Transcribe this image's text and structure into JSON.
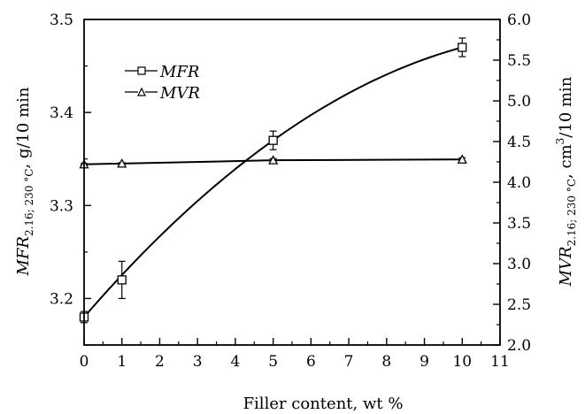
{
  "chart_data": {
    "type": "line",
    "xlabel": "Filler content, wt %",
    "ylabel_left": {
      "main": "MFR",
      "sub": "2.16; 230 °C",
      "unit": ", g/10 min"
    },
    "ylabel_right": {
      "main": "MVR",
      "sub": "2.16; 230 °C",
      "unit1": ", cm",
      "sup": "3",
      "unit2": "/10 min"
    },
    "xlim": [
      0,
      11
    ],
    "ylim_left": [
      3.15,
      3.5
    ],
    "ylim_right": [
      2.0,
      6.0
    ],
    "x_ticks": [
      "0",
      "1",
      "2",
      "3",
      "4",
      "5",
      "6",
      "7",
      "8",
      "9",
      "10",
      "11"
    ],
    "y_left_ticks": [
      "3.2",
      "3.3",
      "3.4",
      "3.5"
    ],
    "y_right_ticks": [
      "2.0",
      "2.5",
      "3.0",
      "3.5",
      "4.0",
      "4.5",
      "5.0",
      "5.5",
      "6.0"
    ],
    "legend_placement": "top-left",
    "series": [
      {
        "name": "MFR",
        "axis": "left",
        "marker": "square",
        "x": [
          0,
          1,
          5,
          10
        ],
        "y": [
          3.18,
          3.22,
          3.37,
          3.47
        ],
        "err": [
          0.006,
          0.02,
          0.01,
          0.01
        ]
      },
      {
        "name": "MVR",
        "axis": "right",
        "marker": "triangle",
        "x": [
          0,
          1,
          5,
          10
        ],
        "y": [
          4.22,
          4.23,
          4.27,
          4.28
        ],
        "err": [
          0.01,
          0.01,
          0.02,
          0.02
        ]
      }
    ]
  }
}
